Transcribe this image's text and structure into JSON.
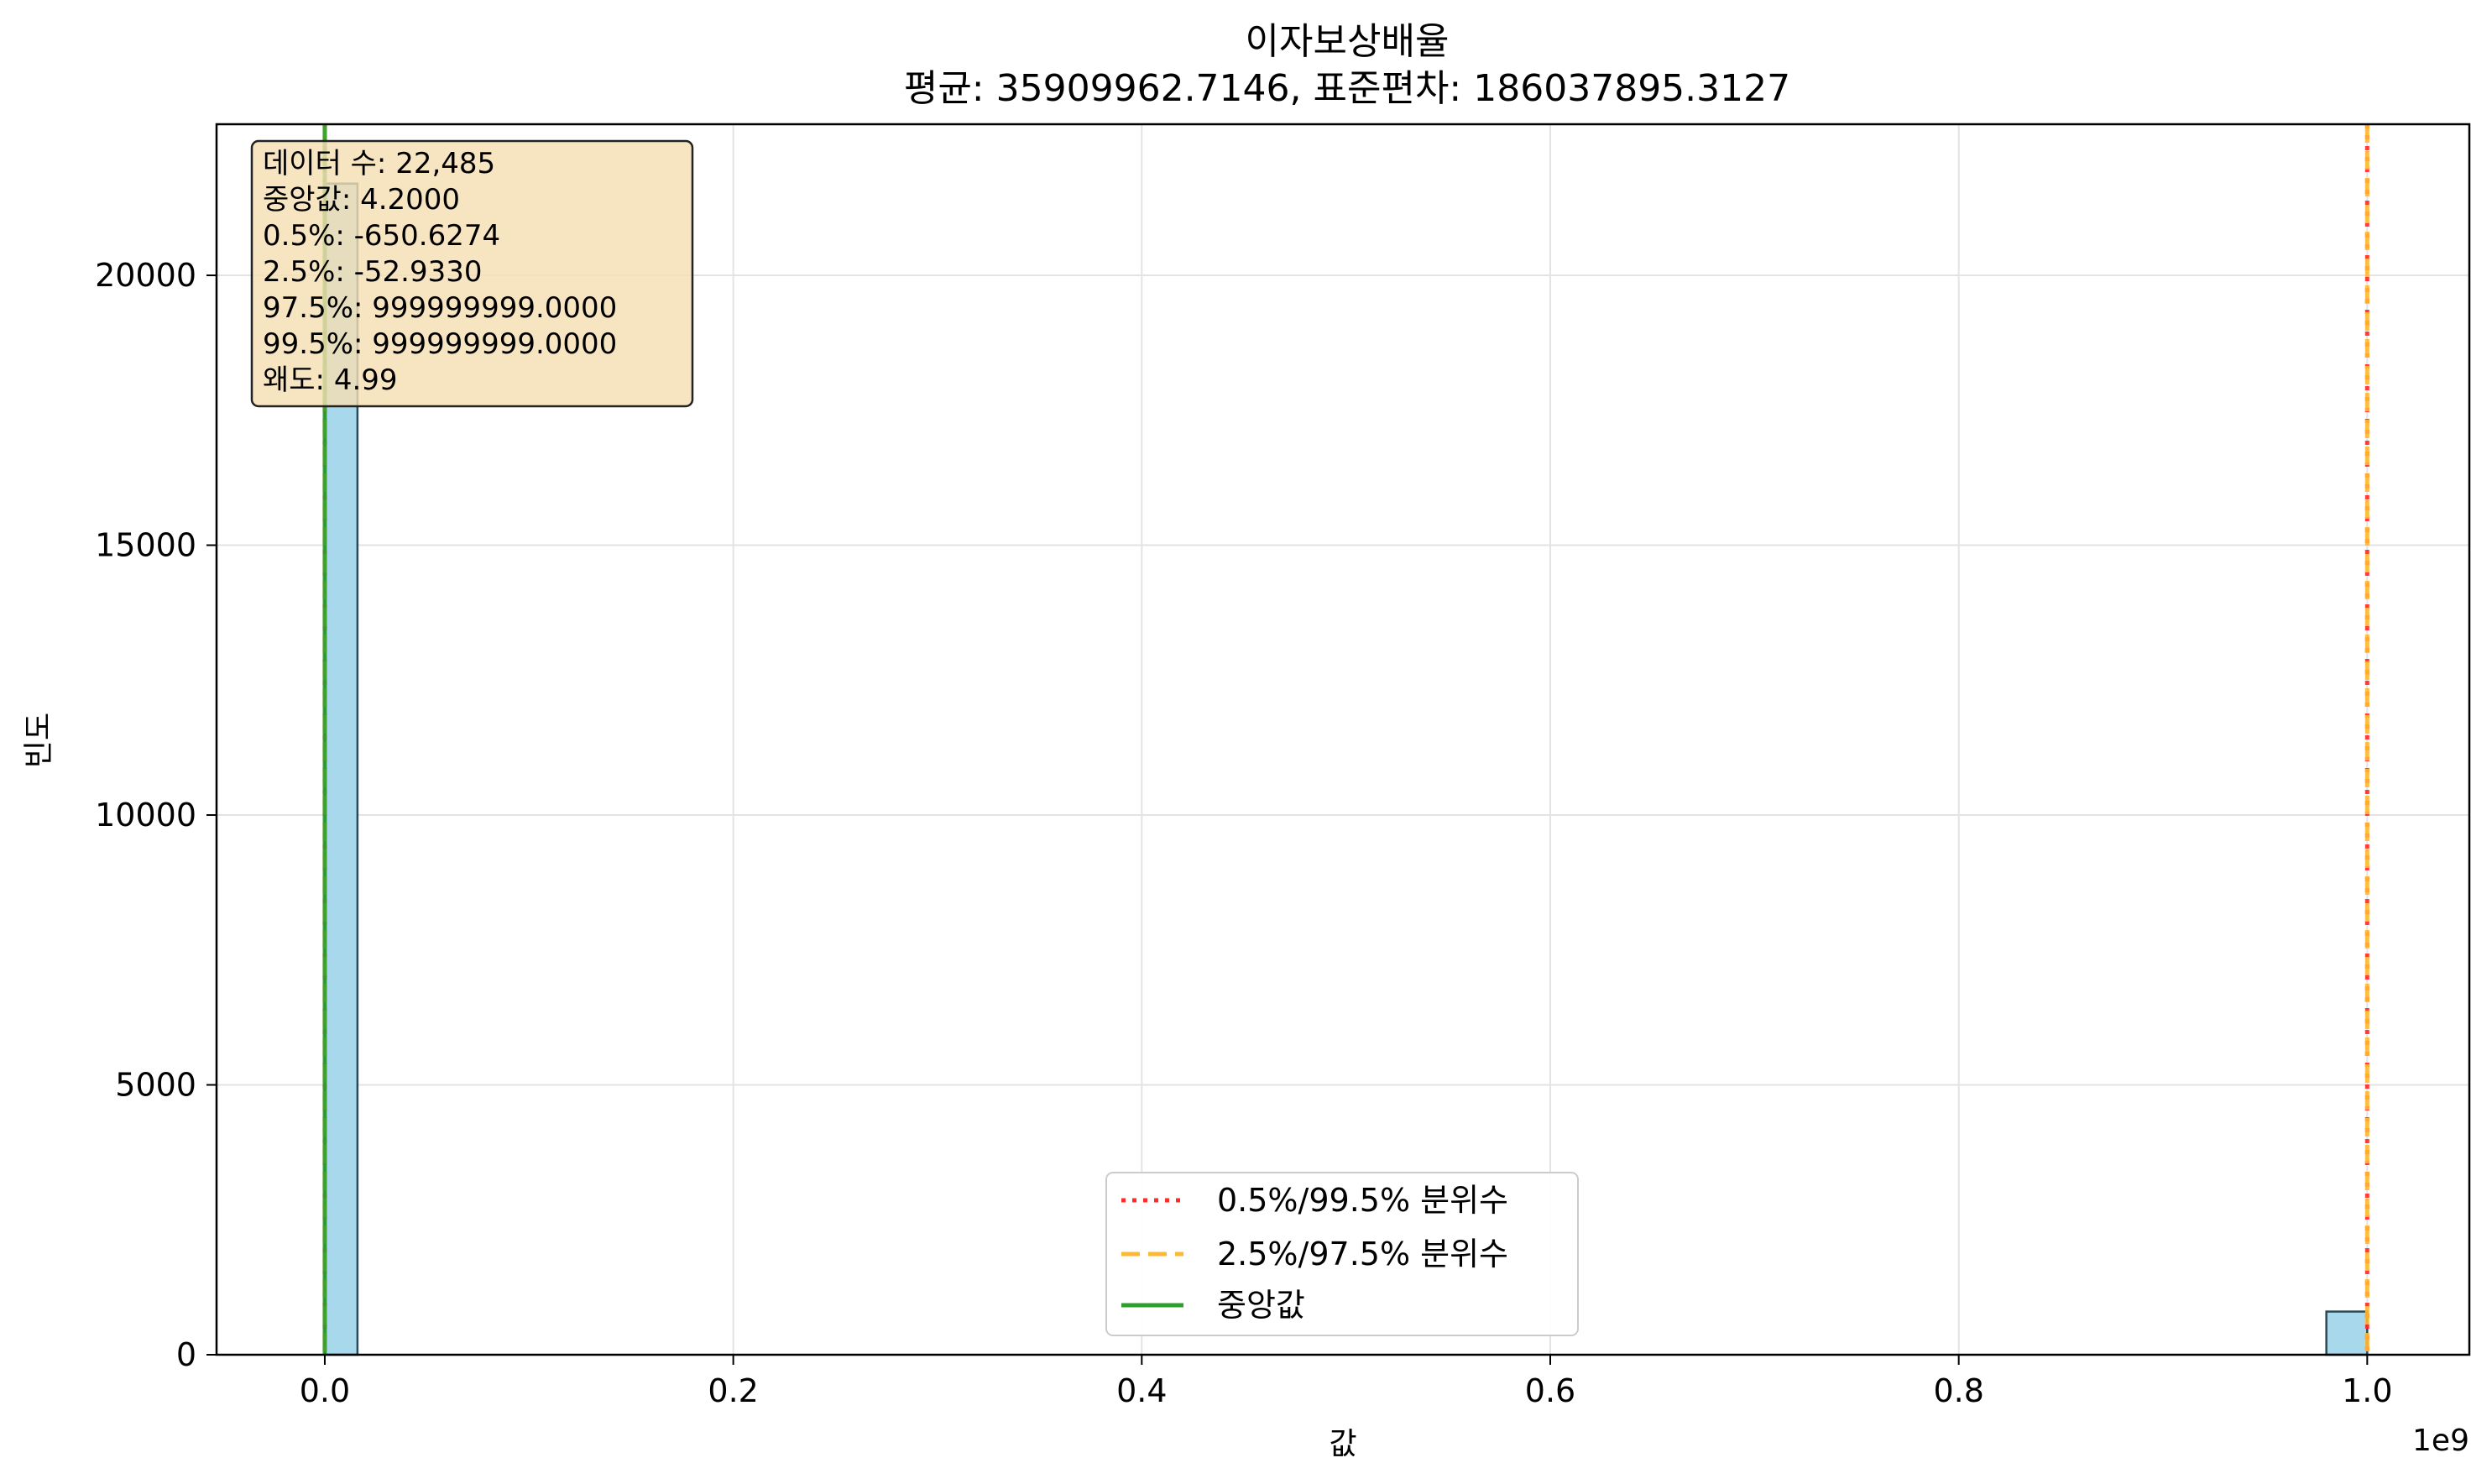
{
  "chart_data": {
    "type": "bar",
    "title": "이자보상배율",
    "subtitle": "평균: 35909962.7146, 표준편차: 186037895.3127",
    "xlabel": "값",
    "ylabel": "빈도",
    "x_offset_label": "1e9",
    "xlim": [
      -0.053,
      1.05
    ],
    "ylim": [
      0,
      22800
    ],
    "x_tick_values": [
      0,
      0.2,
      0.4,
      0.6,
      0.8,
      1.0
    ],
    "x_tick_labels": [
      "0.0",
      "0.2",
      "0.4",
      "0.6",
      "0.8",
      "1.0"
    ],
    "y_tick_values": [
      0,
      5000,
      10000,
      15000,
      20000
    ],
    "y_tick_labels": [
      "0",
      "5000",
      "10000",
      "15000",
      "20000"
    ],
    "bins": [
      {
        "x0": 0.0,
        "x1": 0.016,
        "count": 21700
      },
      {
        "x0": 0.98,
        "x1": 1.0,
        "count": 800
      }
    ],
    "vlines": [
      {
        "name": "0.5%",
        "x": -6.506274e-07,
        "style": "dotted",
        "color": "#ff2a2a"
      },
      {
        "name": "99.5%",
        "x": 0.999999999,
        "style": "dotted",
        "color": "#ff2a2a"
      },
      {
        "name": "2.5%",
        "x": -5.2933e-08,
        "style": "dashed",
        "color": "#ffb833"
      },
      {
        "name": "97.5%",
        "x": 0.999999999,
        "style": "dashed",
        "color": "#ffb833"
      },
      {
        "name": "중앙값",
        "x": 4.2e-09,
        "style": "solid",
        "color": "#2ca02c"
      }
    ],
    "stats_box": [
      "데이터 수: 22,485",
      "중앙값: 4.2000",
      "0.5%: -650.6274",
      "2.5%: -52.9330",
      "97.5%: 999999999.0000",
      "99.5%: 999999999.0000",
      "왜도: 4.99"
    ],
    "legend": {
      "placement": "lower-center",
      "entries": [
        {
          "label": "0.5%/99.5% 분위수",
          "style": "dotted",
          "color": "#ff2a2a"
        },
        {
          "label": "2.5%/97.5% 분위수",
          "style": "dashed",
          "color": "#ffb833"
        },
        {
          "label": "중앙값",
          "style": "solid",
          "color": "#2ca02c"
        }
      ]
    },
    "grid": true,
    "bar_color": "#a8d8ec",
    "bar_edge_color": "#2b4a55",
    "stats_box_color": "#f5deb3"
  }
}
